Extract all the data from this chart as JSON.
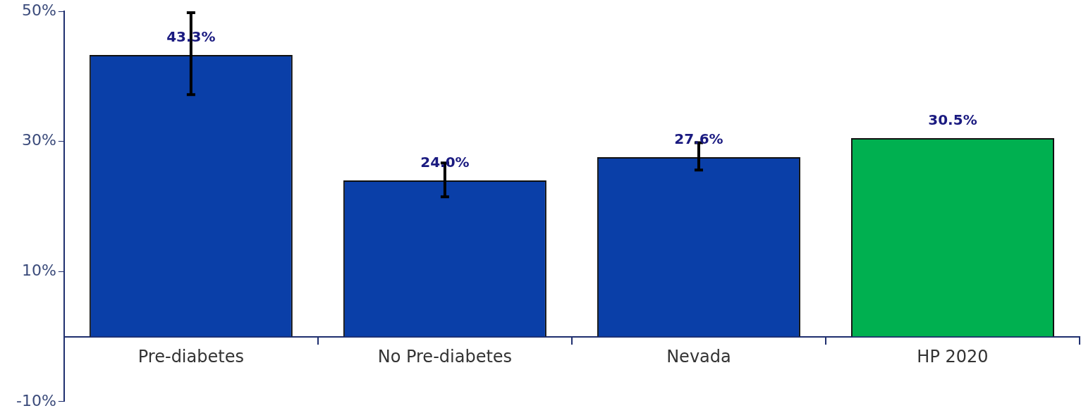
{
  "chart_data": {
    "type": "bar",
    "categories": [
      "Pre-diabetes",
      "No Pre-diabetes",
      "Nevada",
      "HP 2020"
    ],
    "values": [
      43.3,
      24.0,
      27.6,
      30.5
    ],
    "colors": [
      "#0a3fa8",
      "#0a3fa8",
      "#0a3fa8",
      "#00b050"
    ],
    "errors": [
      [
        37.2,
        49.8
      ],
      [
        21.5,
        26.7
      ],
      [
        25.6,
        29.8
      ],
      null
    ],
    "value_labels": [
      "43.3%",
      "24.0%",
      "27.6%",
      "30.5%"
    ],
    "ylim": [
      -10,
      50
    ],
    "yticks": [
      {
        "value": 50,
        "label": "50%"
      },
      {
        "value": 30,
        "label": "30%"
      },
      {
        "value": 10,
        "label": "10%"
      },
      {
        "value": -10,
        "label": "-10%"
      }
    ],
    "grid": false,
    "legend": false
  }
}
